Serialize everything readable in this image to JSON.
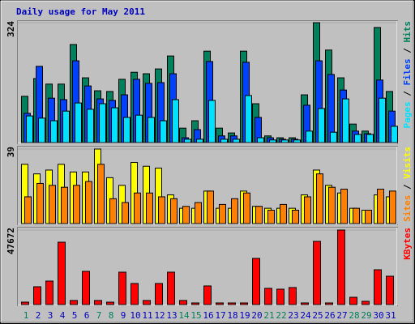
{
  "chart_data": [
    {
      "type": "bar",
      "title": "Daily usage for May 2011",
      "ylim": [
        0,
        324
      ],
      "yticks": [
        324
      ],
      "series": [
        {
          "name": "Hits",
          "color": "#00805c",
          "values": [
            125,
            173,
            158,
            158,
            265,
            175,
            140,
            138,
            171,
            190,
            186,
            199,
            234,
            39,
            59,
            247,
            39,
            26,
            247,
            105,
            18,
            13,
            13,
            129,
            324,
            250,
            175,
            50,
            31,
            311,
            138
          ]
        },
        {
          "name": "Files",
          "color": "#0040ff",
          "values": [
            79,
            206,
            120,
            116,
            221,
            153,
            118,
            114,
            129,
            171,
            160,
            162,
            186,
            13,
            35,
            219,
            18,
            18,
            217,
            68,
            13,
            9,
            9,
            101,
            221,
            184,
            142,
            31,
            24,
            169,
            85
          ]
        },
        {
          "name": "Pages",
          "color": "#00e0ff",
          "values": [
            72,
            66,
            59,
            85,
            107,
            90,
            105,
            94,
            68,
            74,
            68,
            59,
            116,
            9,
            9,
            114,
            9,
            9,
            127,
            13,
            7,
            7,
            7,
            31,
            92,
            28,
            118,
            22,
            22,
            120,
            44
          ]
        }
      ]
    },
    {
      "type": "bar",
      "ylim": [
        0,
        39
      ],
      "yticks": [
        39
      ],
      "series": [
        {
          "name": "Visits",
          "color": "#ffff00",
          "values": [
            31,
            26,
            28,
            31,
            27,
            27,
            39,
            24,
            20,
            32,
            30,
            29,
            15,
            8,
            8,
            17,
            8,
            8,
            17,
            9,
            8,
            8,
            8,
            15,
            28,
            20,
            16,
            8,
            7,
            15,
            14
          ]
        },
        {
          "name": "Sites",
          "color": "#ff8000",
          "values": [
            14,
            21,
            20,
            19,
            20,
            22,
            31,
            13,
            11,
            16,
            16,
            14,
            13,
            9,
            11,
            17,
            10,
            13,
            16,
            9,
            7,
            10,
            7,
            14,
            26,
            19,
            18,
            8,
            7,
            18,
            17
          ]
        }
      ]
    },
    {
      "type": "bar",
      "ylim": [
        0,
        47672
      ],
      "yticks": [
        47672
      ],
      "categories": [
        "1",
        "2",
        "3",
        "4",
        "5",
        "6",
        "7",
        "8",
        "9",
        "10",
        "11",
        "12",
        "13",
        "14",
        "15",
        "16",
        "17",
        "18",
        "19",
        "20",
        "21",
        "22",
        "23",
        "24",
        "25",
        "26",
        "27",
        "28",
        "29",
        "30",
        "31"
      ],
      "category_colors": [
        "#00805c",
        "#0000c0",
        "#0000c0",
        "#0000c0",
        "#0000c0",
        "#0000c0",
        "#00805c",
        "#00805c",
        "#0000c0",
        "#0000c0",
        "#0000c0",
        "#0000c0",
        "#0000c0",
        "#00805c",
        "#00805c",
        "#0000c0",
        "#0000c0",
        "#0000c0",
        "#0000c0",
        "#0000c0",
        "#00805c",
        "#00805c",
        "#0000c0",
        "#0000c0",
        "#0000c0",
        "#0000c0",
        "#0000c0",
        "#00805c",
        "#00805c",
        "#0000c0",
        "#0000c0"
      ],
      "series": [
        {
          "name": "KBytes",
          "color": "#ff0000",
          "values": [
            1554,
            11400,
            15030,
            39900,
            2600,
            21240,
            2600,
            1550,
            20720,
            13470,
            2600,
            13470,
            20720,
            2600,
            1040,
            11920,
            1040,
            1040,
            1040,
            29530,
            10360,
            9840,
            10880,
            1040,
            40420,
            1040,
            47672,
            4660,
            2070,
            22270,
            18130
          ]
        }
      ]
    }
  ]
}
